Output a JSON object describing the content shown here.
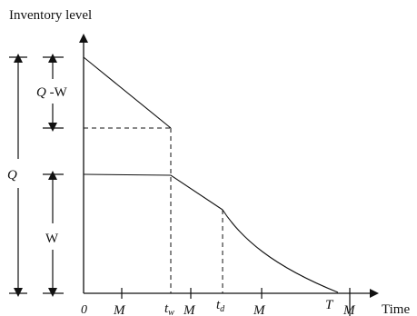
{
  "axes": {
    "y_label": "Inventory level",
    "x_label": "Time"
  },
  "dimensions": {
    "q_minus_w": {
      "var": "Q",
      "rest": " -W"
    },
    "q": "Q",
    "w": "W"
  },
  "x_ticks": {
    "origin": "0",
    "m1": "M",
    "tw_base": "t",
    "tw_sub": "w",
    "m2": "M",
    "td_base": "t",
    "td_sub": "d",
    "m3": "M",
    "t_end": "T",
    "m4": "M"
  },
  "colors": {
    "stroke": "#111111",
    "text": "#111111"
  }
}
